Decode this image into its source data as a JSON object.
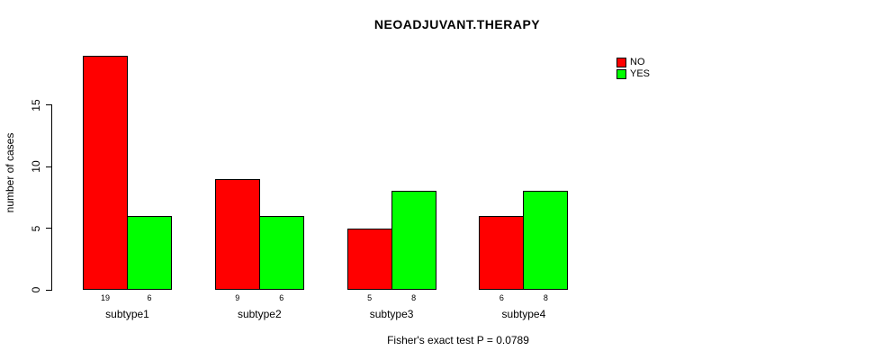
{
  "chart_data": {
    "type": "bar",
    "title": "NEOADJUVANT.THERAPY",
    "ylabel": "number of cases",
    "xlabel": "",
    "categories": [
      "subtype1",
      "subtype2",
      "subtype3",
      "subtype4"
    ],
    "series": [
      {
        "name": "NO",
        "color": "#FF0000",
        "values": [
          19,
          9,
          5,
          6
        ]
      },
      {
        "name": "YES",
        "color": "#00FF00",
        "values": [
          6,
          6,
          8,
          8
        ]
      }
    ],
    "bar_value_labels_shown": true,
    "yticks": [
      0,
      5,
      10,
      15
    ],
    "ylim": [
      0,
      19
    ],
    "grid": false,
    "legend_position": "top-right",
    "footer": "Fisher's exact test P = 0.0789",
    "colors": {
      "no": "#FF0000",
      "yes": "#00FF00",
      "axis": "#000000",
      "background": "#FFFFFF"
    }
  }
}
